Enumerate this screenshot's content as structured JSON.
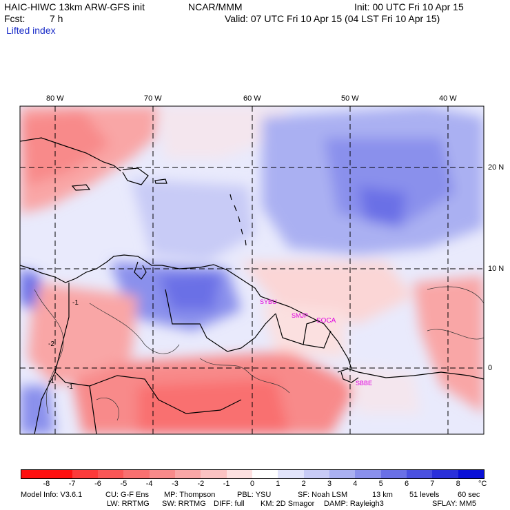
{
  "header": {
    "model": "HAIC-HIWC 13km ARW-GFS init",
    "org": "NCAR/MMM",
    "init": "Init: 00 UTC Fri 10 Apr 15",
    "fcst_label": "Fcst:",
    "fcst_value": "7 h",
    "valid": "Valid: 07 UTC Fri 10 Apr 15 (04 LST Fri 10 Apr 15)",
    "field": "Lifted index"
  },
  "map": {
    "lon_labels": [
      "80 W",
      "70 W",
      "60 W",
      "50 W",
      "40 W"
    ],
    "lat_labels": [
      "20 N",
      "10 N",
      "0"
    ],
    "contour_labels": [
      "-1",
      "-2",
      "-1",
      "-1"
    ],
    "stations": [
      "SYBU",
      "SMJP",
      "SOCA",
      "SBBE"
    ],
    "station_color": "#e000e0"
  },
  "colorbar": {
    "unit": "°C",
    "ticks": [
      "-8",
      "-7",
      "-6",
      "-5",
      "-4",
      "-3",
      "-2",
      "-1",
      "0",
      "1",
      "2",
      "3",
      "4",
      "5",
      "6",
      "7",
      "8"
    ],
    "colors": [
      "#ff1010",
      "#fd3a3a",
      "#fb5656",
      "#f97070",
      "#f88a8a",
      "#f9a6a6",
      "#fbc2c2",
      "#fde0e0",
      "#ffffff",
      "#e2e4fb",
      "#c8cbf6",
      "#aab0f2",
      "#8a90ec",
      "#6a70e6",
      "#4a50e0",
      "#2a30da",
      "#0a10d6"
    ]
  },
  "footer": {
    "line1": [
      "Model Info: V3.6.1",
      "CU: G-F Ens",
      "MP: Thompson",
      "PBL: YSU",
      "SF: Noah LSM",
      "13 km",
      "51 levels",
      "60 sec"
    ],
    "line2": [
      "LW: RRTMG",
      "SW: RRTMG",
      "DIFF: full",
      "KM: 2D Smagor",
      "DAMP: Rayleigh3",
      "SFLAY: MM5"
    ]
  }
}
